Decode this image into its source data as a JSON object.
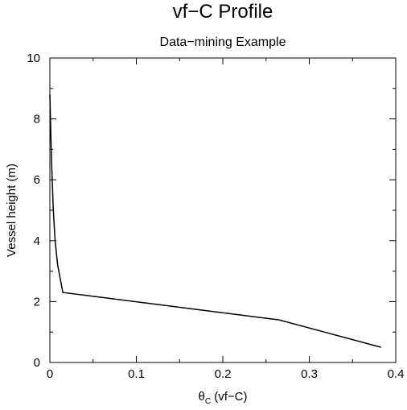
{
  "chart_data": {
    "type": "line",
    "title": "vf−C Profile",
    "subtitle": "Data−mining Example",
    "xlabel_symbol": "θ",
    "xlabel_subscript": "C",
    "xlabel_rest": " (vf−C)",
    "ylabel": "Vessel height (m)",
    "xlim": [
      0,
      0.4
    ],
    "ylim": [
      0,
      10
    ],
    "x_ticks": [
      0,
      0.1,
      0.2,
      0.3,
      0.4
    ],
    "x_tick_labels": [
      "0",
      "0.1",
      "0.2",
      "0.3",
      "0.4"
    ],
    "y_ticks": [
      0,
      2,
      4,
      6,
      8,
      10
    ],
    "y_tick_labels": [
      "0",
      "2",
      "4",
      "6",
      "8",
      "10"
    ],
    "grid": false,
    "legend": "none",
    "line_color": "#000000",
    "series": [
      {
        "x": [
          0.383,
          0.265,
          0.015,
          0.009,
          0.006,
          0.004,
          0.002,
          0.001,
          0.0
        ],
        "y": [
          0.5,
          1.4,
          2.3,
          3.2,
          4.0,
          5.0,
          6.5,
          7.6,
          8.8
        ]
      }
    ]
  }
}
